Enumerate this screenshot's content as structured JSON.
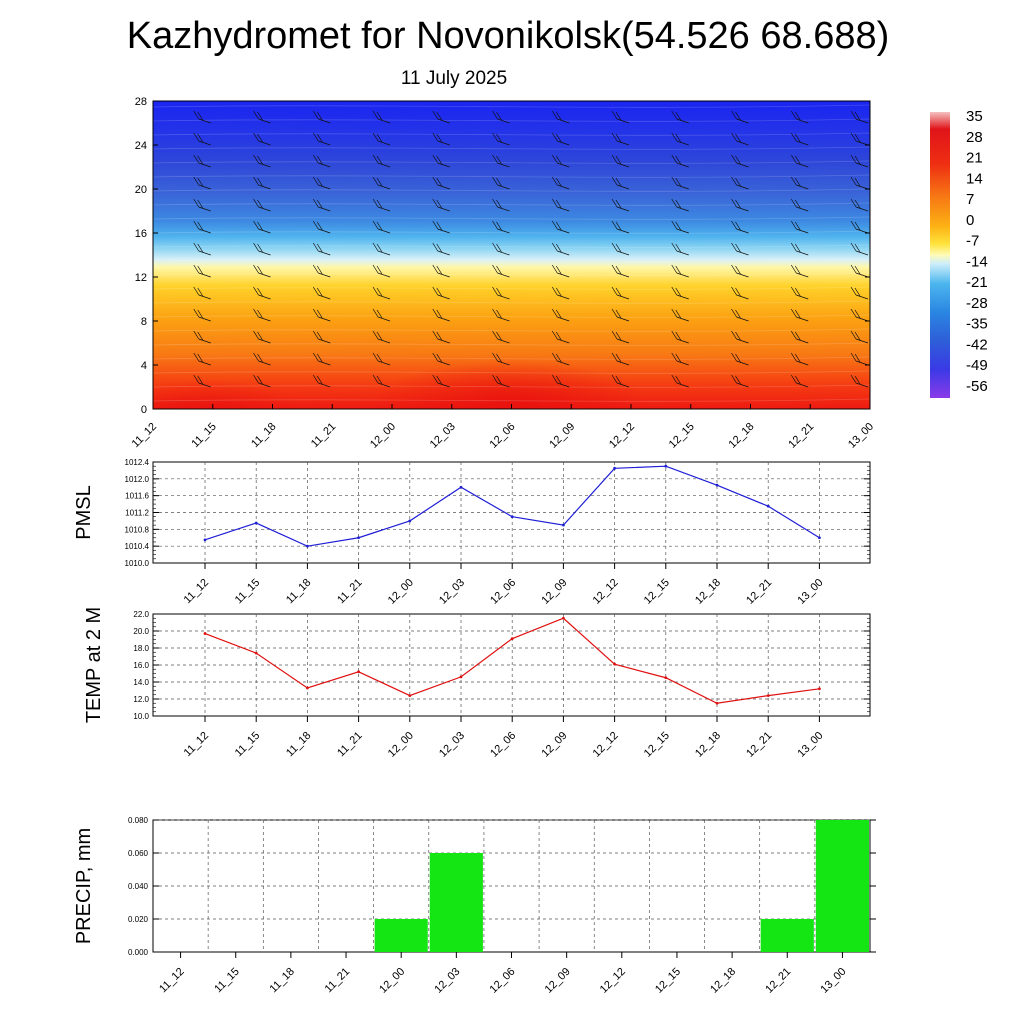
{
  "header": {
    "title": "Kazhydromet for Novonikolsk(54.526 68.688)",
    "subtitle": "11 July 2025"
  },
  "colors": {
    "pmsl_line": "#1f1fd6",
    "temp_line": "#e01010",
    "precip_bar": "#14e614",
    "grid": "#555555"
  },
  "chart_data": [
    {
      "type": "heatmap",
      "name": "temperature-cross-section",
      "x": [
        "11_12",
        "11_15",
        "11_18",
        "11_21",
        "12_00",
        "12_03",
        "12_06",
        "12_09",
        "12_12",
        "12_15",
        "12_18",
        "12_21",
        "13_00"
      ],
      "yticks": [
        0,
        4,
        8,
        12,
        16,
        20,
        24,
        28
      ],
      "ylim": [
        0,
        28
      ],
      "grid": false,
      "overlay": "wind barbs",
      "colorbar": {
        "labels": [
          "35",
          "28",
          "21",
          "14",
          "7",
          "0",
          "-7",
          "-14",
          "-21",
          "-28",
          "-35",
          "-42",
          "-49",
          "-56"
        ],
        "placement": "right"
      }
    },
    {
      "type": "line",
      "name": "pmsl",
      "ylabel": "PMSL",
      "x": [
        "11_12",
        "11_15",
        "11_18",
        "11_21",
        "12_00",
        "12_03",
        "12_06",
        "12_09",
        "12_12",
        "12_15",
        "12_18",
        "12_21",
        "13_00"
      ],
      "values": [
        1010.55,
        1010.95,
        1010.4,
        1010.6,
        1011.0,
        1011.8,
        1011.1,
        1010.9,
        1012.25,
        1012.3,
        1011.85,
        1011.35,
        1010.6
      ],
      "yticks": [
        "1010.0",
        "1010.4",
        "1010.8",
        "1011.2",
        "1011.6",
        "1012.0",
        "1012.4"
      ],
      "ylim": [
        1010.0,
        1012.4
      ],
      "grid": true
    },
    {
      "type": "line",
      "name": "temp-2m",
      "ylabel": "TEMP at 2 M",
      "x": [
        "11_12",
        "11_15",
        "11_18",
        "11_21",
        "12_00",
        "12_03",
        "12_06",
        "12_09",
        "12_12",
        "12_15",
        "12_18",
        "12_21",
        "13_00"
      ],
      "values": [
        19.7,
        17.4,
        13.3,
        15.2,
        12.4,
        14.6,
        19.1,
        21.5,
        16.1,
        14.5,
        11.5,
        12.4,
        13.2
      ],
      "yticks": [
        "10.0",
        "12.0",
        "14.0",
        "16.0",
        "18.0",
        "20.0",
        "22.0"
      ],
      "ylim": [
        10.0,
        22.0
      ],
      "grid": true
    },
    {
      "type": "bar",
      "name": "precip",
      "ylabel": "PRECIP, mm",
      "categories": [
        "11_12",
        "11_15",
        "11_18",
        "11_21",
        "12_00",
        "12_03",
        "12_06",
        "12_09",
        "12_12",
        "12_15",
        "12_18",
        "12_21",
        "13_00"
      ],
      "values": [
        0,
        0,
        0,
        0,
        0.02,
        0.06,
        0,
        0,
        0,
        0,
        0,
        0.02,
        0.08
      ],
      "yticks": [
        "0.000",
        "0.020",
        "0.040",
        "0.060",
        "0.080"
      ],
      "ylim": [
        0,
        0.08
      ],
      "grid": true
    }
  ]
}
